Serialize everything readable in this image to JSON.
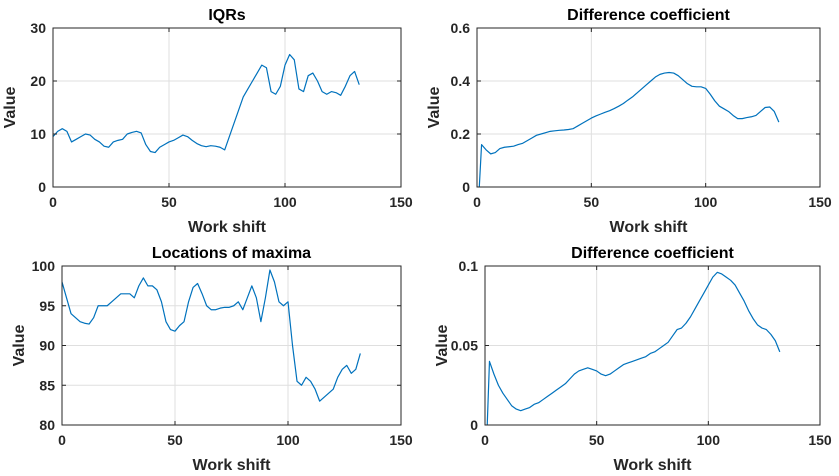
{
  "chart_data": [
    {
      "type": "line",
      "title": "IQRs",
      "xlabel": "Work shift",
      "ylabel": "Value",
      "xlim": [
        0,
        150
      ],
      "ylim": [
        0,
        30
      ],
      "xticks": [
        0,
        50,
        100,
        150
      ],
      "yticks": [
        0,
        10,
        20,
        30
      ],
      "grid": true,
      "color": "#0072BD",
      "series": [
        {
          "x": [
            0,
            2,
            4,
            6,
            8,
            10,
            12,
            14,
            16,
            18,
            20,
            22,
            24,
            26,
            28,
            30,
            32,
            34,
            36,
            38,
            40,
            42,
            44,
            46,
            48,
            50,
            52,
            54,
            56,
            58,
            60,
            62,
            64,
            66,
            68,
            70,
            72,
            74,
            76,
            78,
            80,
            82,
            84,
            86,
            88,
            90,
            92,
            94,
            96,
            98,
            100,
            102,
            104,
            106,
            108,
            110,
            112,
            114,
            116,
            118,
            120,
            122,
            124,
            126,
            128,
            130,
            132
          ],
          "y": [
            9.5,
            10.5,
            11.0,
            10.5,
            8.5,
            9.0,
            9.5,
            10.0,
            9.8,
            9.0,
            8.5,
            7.7,
            7.5,
            8.5,
            8.8,
            9.0,
            10.0,
            10.3,
            10.5,
            10.2,
            8.0,
            6.7,
            6.5,
            7.5,
            8.0,
            8.5,
            8.8,
            9.3,
            9.8,
            9.5,
            8.8,
            8.2,
            7.8,
            7.6,
            7.8,
            7.7,
            7.5,
            7.0,
            9.5,
            12.0,
            14.5,
            17.0,
            18.5,
            20.0,
            21.5,
            23.0,
            22.5,
            18.0,
            17.5,
            19.0,
            23.0,
            25.0,
            24.0,
            18.5,
            18.0,
            21.0,
            21.5,
            20.0,
            18.0,
            17.5,
            18.0,
            17.8,
            17.3,
            19.0,
            21.0,
            21.8,
            19.3
          ]
        }
      ]
    },
    {
      "type": "line",
      "title": "Difference coefficient",
      "xlabel": "Work shift",
      "ylabel": "Value",
      "xlim": [
        0,
        150
      ],
      "ylim": [
        0,
        0.6
      ],
      "xticks": [
        0,
        50,
        100,
        150
      ],
      "yticks": [
        0,
        0.2,
        0.4,
        0.6
      ],
      "grid": true,
      "color": "#0072BD",
      "series": [
        {
          "x": [
            1,
            2,
            4,
            6,
            8,
            10,
            12,
            14,
            16,
            18,
            20,
            22,
            24,
            26,
            28,
            30,
            32,
            34,
            36,
            38,
            40,
            42,
            44,
            46,
            48,
            50,
            52,
            54,
            56,
            58,
            60,
            62,
            64,
            66,
            68,
            70,
            72,
            74,
            76,
            78,
            80,
            82,
            84,
            86,
            88,
            90,
            92,
            94,
            96,
            98,
            100,
            102,
            104,
            106,
            108,
            110,
            112,
            114,
            116,
            118,
            120,
            122,
            124,
            126,
            128,
            130,
            132
          ],
          "y": [
            0.0,
            0.16,
            0.14,
            0.125,
            0.13,
            0.145,
            0.15,
            0.152,
            0.154,
            0.16,
            0.165,
            0.175,
            0.185,
            0.195,
            0.2,
            0.205,
            0.21,
            0.212,
            0.214,
            0.215,
            0.217,
            0.22,
            0.23,
            0.24,
            0.25,
            0.26,
            0.268,
            0.275,
            0.282,
            0.288,
            0.296,
            0.305,
            0.315,
            0.328,
            0.34,
            0.355,
            0.37,
            0.385,
            0.4,
            0.415,
            0.425,
            0.43,
            0.432,
            0.43,
            0.42,
            0.405,
            0.39,
            0.38,
            0.378,
            0.378,
            0.372,
            0.35,
            0.325,
            0.305,
            0.295,
            0.285,
            0.27,
            0.258,
            0.258,
            0.262,
            0.265,
            0.27,
            0.285,
            0.3,
            0.302,
            0.285,
            0.245
          ]
        }
      ]
    },
    {
      "type": "line",
      "title": "Locations of maxima",
      "xlabel": "Work shift",
      "ylabel": "Value",
      "xlim": [
        0,
        150
      ],
      "ylim": [
        80,
        100
      ],
      "xticks": [
        0,
        50,
        100,
        150
      ],
      "yticks": [
        80,
        85,
        90,
        95,
        100
      ],
      "grid": true,
      "color": "#0072BD",
      "series": [
        {
          "x": [
            0,
            2,
            4,
            6,
            8,
            10,
            12,
            14,
            16,
            18,
            20,
            22,
            24,
            26,
            28,
            30,
            32,
            34,
            36,
            38,
            40,
            42,
            44,
            46,
            48,
            50,
            52,
            54,
            56,
            58,
            60,
            62,
            64,
            66,
            68,
            70,
            72,
            74,
            76,
            78,
            80,
            82,
            84,
            86,
            88,
            90,
            92,
            94,
            96,
            98,
            100,
            102,
            104,
            106,
            108,
            110,
            112,
            114,
            116,
            118,
            120,
            122,
            124,
            126,
            128,
            130,
            132
          ],
          "y": [
            98.0,
            96.0,
            94.0,
            93.5,
            93.0,
            92.8,
            92.7,
            93.5,
            95.0,
            95.0,
            95.0,
            95.5,
            96.0,
            96.5,
            96.5,
            96.5,
            96.0,
            97.5,
            98.5,
            97.5,
            97.5,
            97.0,
            95.5,
            93.0,
            92.0,
            91.8,
            92.5,
            93.0,
            95.5,
            97.3,
            97.8,
            96.5,
            95.0,
            94.5,
            94.5,
            94.7,
            94.8,
            94.8,
            95.0,
            95.5,
            94.5,
            96.0,
            97.5,
            96.0,
            93.0,
            96.0,
            99.5,
            98.0,
            95.5,
            95.0,
            95.5,
            90.0,
            85.5,
            85.0,
            86.0,
            85.5,
            84.5,
            83.0,
            83.5,
            84.0,
            84.5,
            86.0,
            87.0,
            87.5,
            86.5,
            87.0,
            89.0
          ]
        }
      ]
    },
    {
      "type": "line",
      "title": "Difference coefficient",
      "xlabel": "Work shift",
      "ylabel": "Value",
      "xlim": [
        0,
        150
      ],
      "ylim": [
        0,
        0.1
      ],
      "xticks": [
        0,
        50,
        100,
        150
      ],
      "yticks": [
        0,
        0.05,
        0.1
      ],
      "grid": true,
      "color": "#0072BD",
      "series": [
        {
          "x": [
            1,
            2,
            4,
            6,
            8,
            10,
            12,
            14,
            16,
            18,
            20,
            22,
            24,
            26,
            28,
            30,
            32,
            34,
            36,
            38,
            40,
            42,
            44,
            46,
            48,
            50,
            52,
            54,
            56,
            58,
            60,
            62,
            64,
            66,
            68,
            70,
            72,
            74,
            76,
            78,
            80,
            82,
            84,
            86,
            88,
            90,
            92,
            94,
            96,
            98,
            100,
            102,
            104,
            106,
            108,
            110,
            112,
            114,
            116,
            118,
            120,
            122,
            124,
            126,
            128,
            130,
            132
          ],
          "y": [
            0.0,
            0.04,
            0.032,
            0.025,
            0.02,
            0.016,
            0.012,
            0.01,
            0.009,
            0.01,
            0.011,
            0.013,
            0.014,
            0.016,
            0.018,
            0.02,
            0.022,
            0.024,
            0.026,
            0.029,
            0.032,
            0.034,
            0.035,
            0.036,
            0.035,
            0.034,
            0.032,
            0.031,
            0.032,
            0.034,
            0.036,
            0.038,
            0.039,
            0.04,
            0.041,
            0.042,
            0.043,
            0.045,
            0.046,
            0.048,
            0.05,
            0.052,
            0.056,
            0.06,
            0.061,
            0.064,
            0.068,
            0.073,
            0.078,
            0.083,
            0.088,
            0.093,
            0.096,
            0.095,
            0.093,
            0.091,
            0.088,
            0.083,
            0.078,
            0.072,
            0.067,
            0.063,
            0.061,
            0.06,
            0.057,
            0.053,
            0.046
          ]
        }
      ]
    }
  ]
}
